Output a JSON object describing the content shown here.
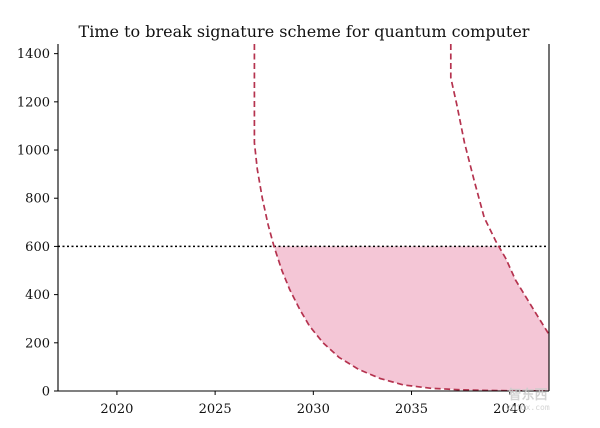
{
  "chart_data": {
    "type": "line",
    "title": "Time to break signature scheme for quantum computer",
    "xlabel": "",
    "ylabel": "",
    "xlim": [
      2017,
      2042
    ],
    "ylim": [
      0,
      1440
    ],
    "x_ticks": [
      2020,
      2025,
      2030,
      2035,
      2040
    ],
    "y_ticks": [
      0,
      200,
      400,
      600,
      800,
      1000,
      1200,
      1400
    ],
    "grid": false,
    "legend": "none",
    "threshold": {
      "y": 600,
      "style": "dotted",
      "color": "#000000"
    },
    "series": [
      {
        "style": "dashed",
        "color": "#b5334f",
        "x": [
          2027.0,
          2027.0,
          2027.15,
          2027.4,
          2027.7,
          2028.0,
          2028.4,
          2028.8,
          2029.3,
          2029.8,
          2030.5,
          2031.3,
          2032.3,
          2033.4,
          2034.6,
          2036.0,
          2037.5,
          2039.0,
          2040.5,
          2042.0
        ],
        "y": [
          1440,
          1030,
          920,
          800,
          690,
          600,
          500,
          420,
          340,
          270,
          200,
          140,
          90,
          52,
          25,
          11,
          5,
          2,
          1,
          0
        ]
      },
      {
        "style": "dashed",
        "color": "#b5334f",
        "x": [
          2037.0,
          2037.0,
          2037.3,
          2037.7,
          2038.2,
          2038.7,
          2039.3,
          2039.8,
          2040.3,
          2040.9,
          2041.5,
          2042.0
        ],
        "y": [
          1440,
          1300,
          1190,
          1030,
          870,
          720,
          620,
          550,
          460,
          380,
          300,
          235
        ]
      }
    ],
    "shaded_region": {
      "color": "#f4c6d6",
      "description_free": true,
      "upper_y": 600,
      "between_series": [
        0,
        1
      ]
    }
  },
  "watermark": {
    "text": "智东西",
    "sub": "zhidx.com"
  }
}
